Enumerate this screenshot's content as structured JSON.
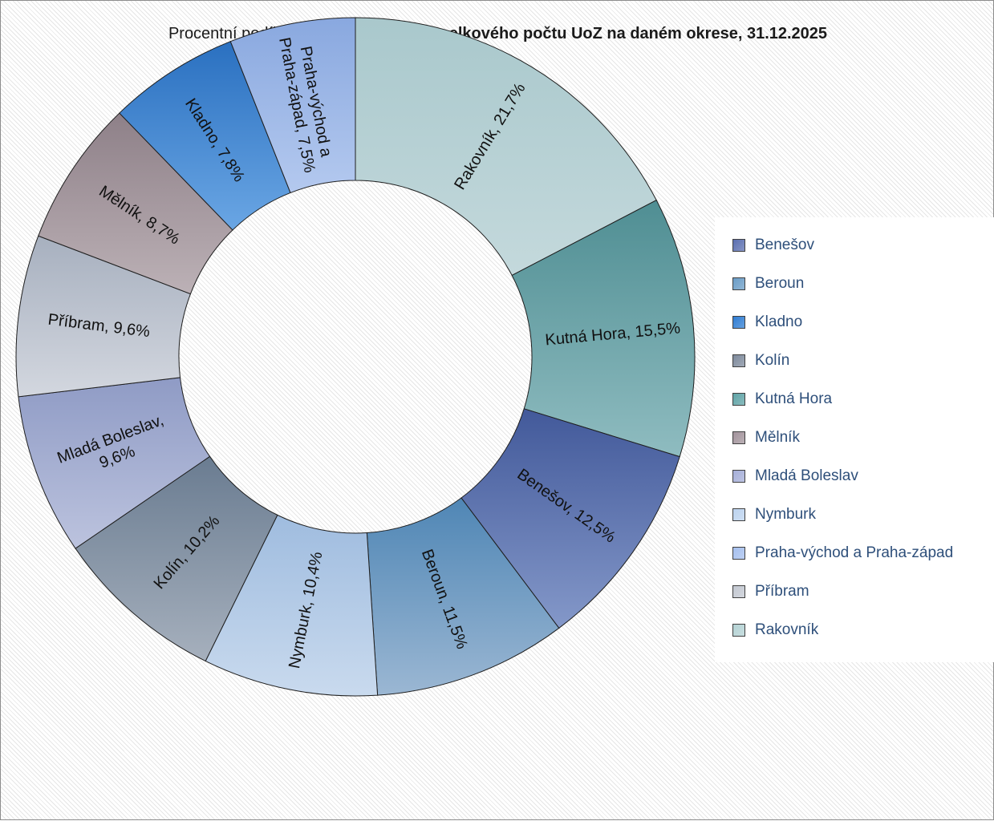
{
  "title": {
    "normal": "Procentní podíl UoZ OZP na okrese ",
    "bold": "z celkového počtu UoZ na daném okrese, 31.12.2025"
  },
  "chart_data": {
    "type": "pie",
    "variant": "donut",
    "title": "Procentní podíl UoZ OZP na okrese z celkového počtu UoZ na daném okrese, 31.12.2025",
    "legend_position": "right",
    "unit": "%",
    "slices": [
      {
        "name": "Rakovník",
        "value": 21.7,
        "label": [
          "Rakovník, 21,7%"
        ],
        "color": "#a9c8cc",
        "color_light": "#c4d9dc"
      },
      {
        "name": "Kutná Hora",
        "value": 15.5,
        "label": [
          "Kutná Hora, 15,5%"
        ],
        "color": "#4f8e93",
        "color_light": "#8fbcc0"
      },
      {
        "name": "Benešov",
        "value": 12.5,
        "label": [
          "Benešov, 12,5%"
        ],
        "color": "#42599a",
        "color_light": "#8498c9"
      },
      {
        "name": "Beroun",
        "value": 11.5,
        "label": [
          "Beroun, 11,5%"
        ],
        "color": "#4f86b5",
        "color_light": "#9bb7d3"
      },
      {
        "name": "Nymburk",
        "value": 10.4,
        "label": [
          "Nymburk, 10,4%"
        ],
        "color": "#9fbcdf",
        "color_light": "#c9daee"
      },
      {
        "name": "Kolín",
        "value": 10.2,
        "label": [
          "Kolín, 10,2%"
        ],
        "color": "#6a7c91",
        "color_light": "#a6b0bd"
      },
      {
        "name": "Mladá Boleslav",
        "value": 9.6,
        "label": [
          "Mladá Boleslav,",
          "9,6%"
        ],
        "color": "#8f9bc5",
        "color_light": "#bcc3de"
      },
      {
        "name": "Příbram",
        "value": 9.6,
        "label": [
          "Příbram, 9,6%"
        ],
        "color": "#a7b0bf",
        "color_light": "#d3d7df"
      },
      {
        "name": "Mělník",
        "value": 8.7,
        "label": [
          "Mělník, 8,7%"
        ],
        "color": "#8e8088",
        "color_light": "#bcb1b6"
      },
      {
        "name": "Kladno",
        "value": 7.8,
        "label": [
          "Kladno, 7,8%"
        ],
        "color": "#2a70c0",
        "color_light": "#6aa6e4"
      },
      {
        "name": "Praha-východ a Praha-západ",
        "value": 7.5,
        "label": [
          "Praha-východ a",
          "Praha-západ, 7,5%"
        ],
        "color": "#89a8df",
        "color_light": "#b4c9ef"
      }
    ],
    "legend": [
      {
        "label": "Benešov",
        "color": "#5b6fb0"
      },
      {
        "label": "Beroun",
        "color": "#6a9cc6"
      },
      {
        "label": "Kladno",
        "color": "#2f7dd3"
      },
      {
        "label": "Kolín",
        "color": "#7e8a9c"
      },
      {
        "label": "Kutná Hora",
        "color": "#5fa3a6"
      },
      {
        "label": "Mělník",
        "color": "#a2939b"
      },
      {
        "label": "Mladá Boleslav",
        "color": "#a5aed8"
      },
      {
        "label": "Nymburk",
        "color": "#bcd3ef"
      },
      {
        "label": "Praha-východ a Praha-západ",
        "color": "#a5bfee"
      },
      {
        "label": "Příbram",
        "color": "#c3c8d1"
      },
      {
        "label": "Rakovník",
        "color": "#b4d2d4"
      }
    ]
  }
}
